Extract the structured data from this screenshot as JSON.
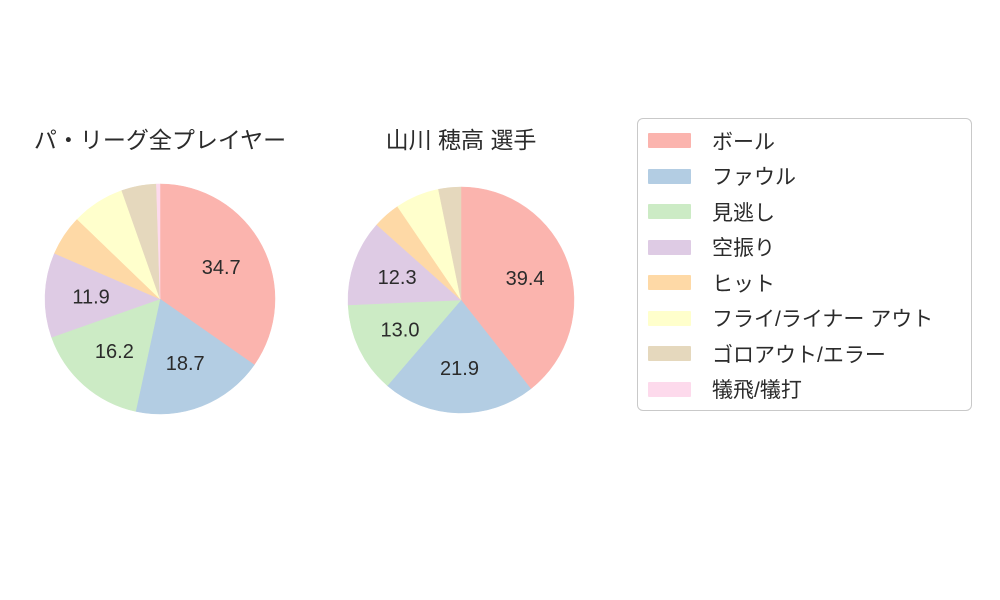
{
  "figure": {
    "background": "#ffffff",
    "text_color": "#2b2b2b"
  },
  "chart_data": [
    {
      "type": "pie",
      "title": "パ・リーグ全プレイヤー",
      "labels": [
        "ボール",
        "ファウル",
        "見逃し",
        "空振り",
        "ヒット",
        "フライ/ライナー アウト",
        "ゴロアウト/エラー",
        "犠飛/犠打"
      ],
      "ids": [
        "ball",
        "foul",
        "called-strike",
        "swinging-strike",
        "hit",
        "fly-liner-out",
        "groundout-error",
        "sacrifice"
      ],
      "values": [
        34.7,
        18.7,
        16.2,
        11.9,
        5.7,
        7.4,
        4.9,
        0.5
      ],
      "shown_value_labels": [
        "34.7",
        "18.7",
        "16.2",
        "11.9",
        "",
        "",
        "",
        ""
      ],
      "colors": [
        "#fbb4ae",
        "#b3cde3",
        "#ccebc5",
        "#decbe4",
        "#fed9a6",
        "#ffffcc",
        "#e5d8bd",
        "#fddaec"
      ],
      "start_angle": "top",
      "direction": "clockwise",
      "label_radius_fraction": 0.6
    },
    {
      "type": "pie",
      "title": "山川 穂高  選手",
      "labels": [
        "ボール",
        "ファウル",
        "見逃し",
        "空振り",
        "ヒット",
        "フライ/ライナー アウト",
        "ゴロアウト/エラー",
        "犠飛/犠打"
      ],
      "ids": [
        "ball",
        "foul",
        "called-strike",
        "swinging-strike",
        "hit",
        "fly-liner-out",
        "groundout-error",
        "sacrifice"
      ],
      "values": [
        39.4,
        21.9,
        13.0,
        12.3,
        3.9,
        6.3,
        3.2,
        0.0
      ],
      "shown_value_labels": [
        "39.4",
        "21.9",
        "13.0",
        "12.3",
        "",
        "",
        "",
        ""
      ],
      "colors": [
        "#fbb4ae",
        "#b3cde3",
        "#ccebc5",
        "#decbe4",
        "#fed9a6",
        "#ffffcc",
        "#e5d8bd",
        "#fddaec"
      ],
      "start_angle": "top",
      "direction": "clockwise",
      "label_radius_fraction": 0.6
    }
  ],
  "legend": {
    "position": "right",
    "border_color": "#c9c9c9",
    "items": [
      {
        "label": "ボール",
        "color": "#fbb4ae"
      },
      {
        "label": "ファウル",
        "color": "#b3cde3"
      },
      {
        "label": "見逃し",
        "color": "#ccebc5"
      },
      {
        "label": "空振り",
        "color": "#decbe4"
      },
      {
        "label": "ヒット",
        "color": "#fed9a6"
      },
      {
        "label": "フライ/ライナー アウト",
        "color": "#ffffcc"
      },
      {
        "label": "ゴロアウト/エラー",
        "color": "#e5d8bd"
      },
      {
        "label": "犠飛/犠打",
        "color": "#fddaec"
      }
    ]
  }
}
